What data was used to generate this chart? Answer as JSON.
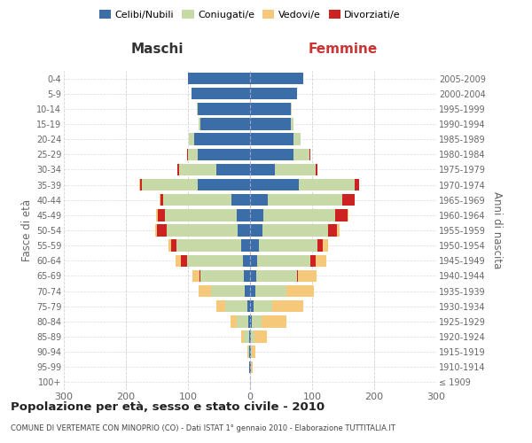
{
  "age_groups": [
    "100+",
    "95-99",
    "90-94",
    "85-89",
    "80-84",
    "75-79",
    "70-74",
    "65-69",
    "60-64",
    "55-59",
    "50-54",
    "45-49",
    "40-44",
    "35-39",
    "30-34",
    "25-29",
    "20-24",
    "15-19",
    "10-14",
    "5-9",
    "0-4"
  ],
  "birth_years": [
    "≤ 1909",
    "1910-1914",
    "1915-1919",
    "1920-1924",
    "1925-1929",
    "1930-1934",
    "1935-1939",
    "1940-1944",
    "1945-1949",
    "1950-1954",
    "1955-1959",
    "1960-1964",
    "1965-1969",
    "1970-1974",
    "1975-1979",
    "1980-1984",
    "1985-1989",
    "1990-1994",
    "1995-1999",
    "2000-2004",
    "2005-2009"
  ],
  "maschi": {
    "celibi": [
      0,
      1,
      1,
      2,
      3,
      5,
      8,
      10,
      12,
      14,
      20,
      22,
      30,
      85,
      55,
      85,
      90,
      80,
      85,
      95,
      100
    ],
    "coniugati": [
      0,
      1,
      2,
      8,
      18,
      35,
      55,
      70,
      90,
      105,
      115,
      115,
      110,
      90,
      60,
      15,
      8,
      3,
      1,
      0,
      0
    ],
    "vedovi": [
      0,
      0,
      1,
      5,
      10,
      15,
      20,
      12,
      8,
      5,
      3,
      2,
      1,
      1,
      0,
      0,
      0,
      0,
      0,
      0,
      0
    ],
    "divorziati": [
      0,
      0,
      0,
      0,
      0,
      0,
      0,
      1,
      10,
      8,
      15,
      12,
      5,
      2,
      2,
      1,
      0,
      0,
      0,
      0,
      0
    ]
  },
  "femmine": {
    "nubili": [
      0,
      1,
      1,
      2,
      3,
      5,
      8,
      10,
      12,
      14,
      20,
      22,
      28,
      78,
      40,
      70,
      70,
      65,
      65,
      75,
      85
    ],
    "coniugate": [
      0,
      1,
      2,
      5,
      15,
      30,
      50,
      65,
      85,
      95,
      105,
      115,
      120,
      90,
      65,
      25,
      12,
      5,
      2,
      0,
      0
    ],
    "vedove": [
      0,
      2,
      5,
      20,
      40,
      50,
      45,
      30,
      18,
      8,
      4,
      2,
      1,
      0,
      0,
      0,
      0,
      0,
      0,
      0,
      0
    ],
    "divorziate": [
      0,
      0,
      0,
      0,
      0,
      0,
      0,
      2,
      8,
      8,
      15,
      20,
      20,
      8,
      4,
      2,
      0,
      0,
      0,
      0,
      0
    ]
  },
  "colors": {
    "celibi": "#3B6EA8",
    "coniugati": "#C8D9A8",
    "vedovi": "#F5C87A",
    "divorziati": "#CC2222"
  },
  "title": "Popolazione per età, sesso e stato civile - 2010",
  "subtitle": "COMUNE DI VERTEMATE CON MINOPRIO (CO) - Dati ISTAT 1° gennaio 2010 - Elaborazione TUTTITALIA.IT",
  "xlabel_left": "Maschi",
  "xlabel_right": "Femmine",
  "ylabel_left": "Fasce di età",
  "ylabel_right": "Anni di nascita",
  "xlim": 300,
  "background_color": "#ffffff",
  "grid_color": "#cccccc",
  "legend_labels": [
    "Celibi/Nubili",
    "Coniugati/e",
    "Vedovi/e",
    "Divorziati/e"
  ]
}
